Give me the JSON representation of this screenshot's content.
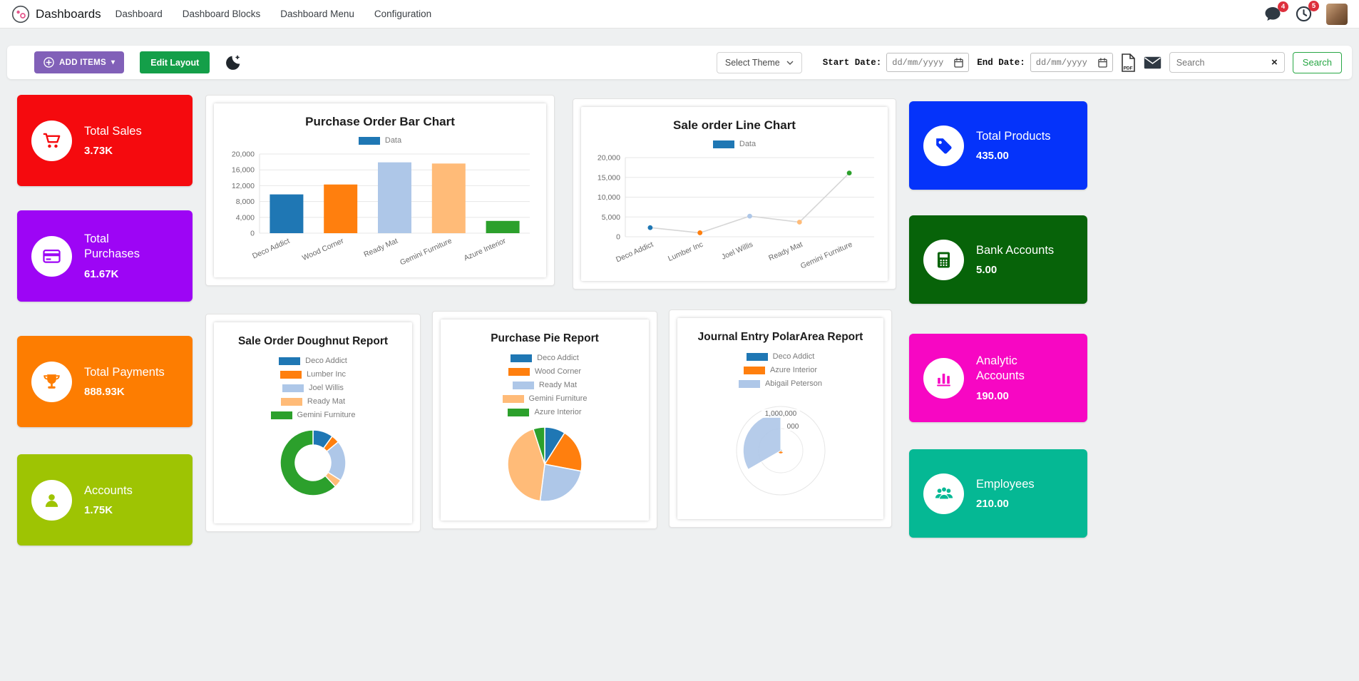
{
  "theme": {
    "badge_red": "#dd2f3c",
    "add_items_bg": "#8160b8",
    "edit_layout_bg": "#149f49",
    "search_green": "#28a745",
    "chart_legend_blue": "#1f77b4"
  },
  "nav": {
    "app_name": "Dashboards",
    "items": [
      {
        "label": "Dashboard"
      },
      {
        "label": "Dashboard Blocks"
      },
      {
        "label": "Dashboard Menu"
      },
      {
        "label": "Configuration"
      }
    ],
    "messages_badge": "4",
    "activities_badge": "5"
  },
  "toolbar": {
    "add_items_label": "ADD ITEMS",
    "edit_layout_label": "Edit Layout",
    "select_theme_label": "Select Theme",
    "start_date_label": "Start Date:",
    "end_date_label": "End Date:",
    "date_placeholder": "dd/mm/yyyy",
    "search_placeholder": "Search",
    "search_button_label": "Search"
  },
  "kpi_tiles_left": [
    {
      "title": "Total Sales",
      "value": "3.73K",
      "color": "#f50a0e",
      "icon": "cart"
    },
    {
      "title": "Total Purchases",
      "value": "61.67K",
      "color": "#9d05f5",
      "icon": "credit-card"
    },
    {
      "title": "Total Payments",
      "value": "888.93K",
      "color": "#fd7d01",
      "icon": "trophy"
    },
    {
      "title": "Accounts",
      "value": "1.75K",
      "color": "#9ec403",
      "icon": "user"
    }
  ],
  "kpi_tiles_right": [
    {
      "title": "Total Products",
      "value": "435.00",
      "color": "#0533fa",
      "icon": "tag"
    },
    {
      "title": "Bank Accounts",
      "value": "5.00",
      "color": "#076309",
      "icon": "calculator"
    },
    {
      "title": "Analytic Accounts",
      "value": "190.00",
      "color": "#f707c3",
      "icon": "bar-chart"
    },
    {
      "title": "Employees",
      "value": "210.00",
      "color": "#05b894",
      "icon": "users"
    }
  ],
  "chart_data": [
    {
      "type": "bar",
      "title": "Purchase Order Bar Chart",
      "legend_labels": [
        "Data"
      ],
      "legend_colors": [
        "#1f77b4"
      ],
      "legend_position": "top",
      "categories": [
        "Deco Addict",
        "Wood Corner",
        "Ready Mat",
        "Gemini Furniture",
        "Azure Interior"
      ],
      "values": [
        9800,
        12300,
        17900,
        17600,
        3100
      ],
      "colors": [
        "#1f77b4",
        "#ff7f0e",
        "#aec7e8",
        "#ffbb78",
        "#2ca02c"
      ],
      "xlabel": "",
      "ylabel": "",
      "ylim": [
        0,
        20000
      ],
      "yticks": [
        0,
        4000,
        8000,
        12000,
        16000,
        20000
      ],
      "grid": true
    },
    {
      "type": "line",
      "title": "Sale order Line Chart",
      "legend_labels": [
        "Data"
      ],
      "legend_colors": [
        "#1f77b4"
      ],
      "legend_position": "top",
      "categories": [
        "Deco Addict",
        "Lumber Inc",
        "Joel Willis",
        "Ready Mat",
        "Gemini Furniture"
      ],
      "values": [
        2300,
        1000,
        5200,
        3700,
        16100
      ],
      "colors": [
        "#1f77b4",
        "#ff7f0e",
        "#aec7e8",
        "#ffbb78",
        "#2ca02c"
      ],
      "line_color": "#d6d6d6",
      "xlabel": "",
      "ylabel": "",
      "ylim": [
        0,
        20000
      ],
      "yticks": [
        0,
        5000,
        10000,
        15000,
        20000
      ],
      "grid": true
    },
    {
      "type": "doughnut",
      "title": "Sale Order Doughnut Report",
      "legend_position": "top",
      "labels": [
        "Deco Addict",
        "Lumber Inc",
        "Joel Willis",
        "Ready Mat",
        "Gemini Furniture"
      ],
      "values": [
        10,
        4,
        20,
        4,
        62
      ],
      "colors": [
        "#1f77b4",
        "#ff7f0e",
        "#aec7e8",
        "#ffbb78",
        "#2ca02c"
      ]
    },
    {
      "type": "pie",
      "title": "Purchase Pie Report",
      "legend_position": "top",
      "labels": [
        "Deco Addict",
        "Wood Corner",
        "Ready Mat",
        "Gemini Furniture",
        "Azure Interior"
      ],
      "values": [
        9,
        19,
        24,
        43,
        5
      ],
      "colors": [
        "#1f77b4",
        "#ff7f0e",
        "#aec7e8",
        "#ffbb78",
        "#2ca02c"
      ]
    },
    {
      "type": "polarArea",
      "title": "Journal Entry PolarArea Report",
      "legend_position": "top",
      "labels": [
        "Deco Addict",
        "Azure Interior",
        "Abigail Peterson"
      ],
      "values": [
        30000,
        70000,
        850000
      ],
      "colors": [
        "#1f77b4",
        "#ff7f0e",
        "#aec7e8"
      ],
      "scale_max": 1000000,
      "tick_labels": [
        "1,000,000",
        "000"
      ]
    }
  ]
}
